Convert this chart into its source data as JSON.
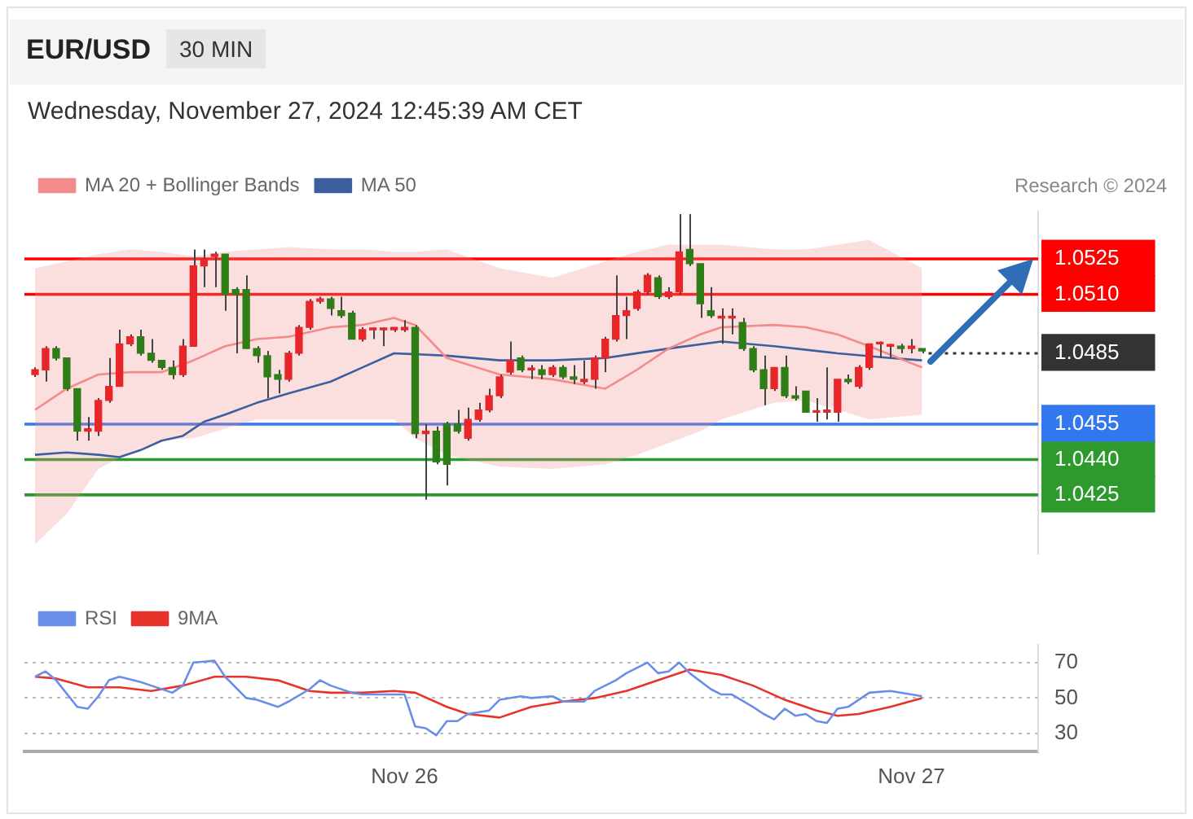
{
  "chart_data": [
    {
      "type": "candlestick",
      "title": "EUR/USD",
      "subtitle": "Wednesday, November 27, 2024 12:45:39 AM CET",
      "annotations": [
        "30 MIN",
        "Research © 2024"
      ],
      "legend": "top left",
      "grid": false,
      "tick_labels": "y",
      "xlim": [
        "2024-11-25T06:00",
        "2024-11-27T06:00"
      ],
      "ylim": [
        1.04,
        1.0545
      ],
      "yticks": [
        1.0425,
        {
          "value": 1.044,
          "label": "1.0440"
        },
        1.0455,
        1.0485,
        {
          "value": 1.051,
          "label": "1.0510"
        },
        1.0525
      ],
      "x": [
        "2024-11-25T06:30",
        "2024-11-25T07:00",
        "2024-11-25T07:30",
        "2024-11-25T08:00",
        "2024-11-25T08:30",
        "2024-11-25T09:00",
        "2024-11-25T09:30",
        "2024-11-25T10:00",
        "2024-11-25T10:30",
        "2024-11-25T11:00",
        "2024-11-25T11:30",
        "2024-11-25T12:00",
        "2024-11-25T12:30",
        "2024-11-25T13:00",
        "2024-11-25T13:30",
        "2024-11-25T14:00",
        "2024-11-25T14:30",
        "2024-11-25T15:00",
        "2024-11-25T15:30",
        "2024-11-25T16:00",
        "2024-11-25T16:30",
        "2024-11-25T17:00",
        "2024-11-25T17:30",
        "2024-11-25T18:00",
        "2024-11-25T18:30",
        "2024-11-25T19:00",
        "2024-11-25T19:30",
        "2024-11-25T20:00",
        "2024-11-25T20:30",
        "2024-11-25T21:00",
        "2024-11-25T21:30",
        "2024-11-25T22:00",
        "2024-11-25T22:30",
        "2024-11-25T23:00",
        "2024-11-25T23:30",
        "2024-11-26T00:00",
        "2024-11-26T00:30",
        "2024-11-26T01:00",
        "2024-11-26T01:30",
        "2024-11-26T02:00",
        "2024-11-26T02:30",
        "2024-11-26T03:00",
        "2024-11-26T03:30",
        "2024-11-26T04:00",
        "2024-11-26T04:30",
        "2024-11-26T05:00",
        "2024-11-26T05:30",
        "2024-11-26T06:00",
        "2024-11-26T06:30",
        "2024-11-26T07:00",
        "2024-11-26T07:30",
        "2024-11-26T08:00",
        "2024-11-26T08:30",
        "2024-11-26T09:00",
        "2024-11-26T09:30",
        "2024-11-26T10:00",
        "2024-11-26T10:30",
        "2024-11-26T11:00",
        "2024-11-26T11:30",
        "2024-11-26T12:00",
        "2024-11-26T12:30",
        "2024-11-26T13:00",
        "2024-11-26T13:30",
        "2024-11-26T14:00",
        "2024-11-26T14:30",
        "2024-11-26T15:00",
        "2024-11-26T15:30",
        "2024-11-26T16:00",
        "2024-11-26T16:30",
        "2024-11-26T17:00",
        "2024-11-26T17:30",
        "2024-11-26T18:00",
        "2024-11-26T18:30",
        "2024-11-26T19:00",
        "2024-11-26T19:30",
        "2024-11-26T20:00",
        "2024-11-26T20:30",
        "2024-11-26T21:00",
        "2024-11-26T21:30",
        "2024-11-26T22:00",
        "2024-11-26T22:30",
        "2024-11-26T23:00",
        "2024-11-26T23:30",
        "2024-11-27T00:00",
        "2024-11-27T00:30"
      ],
      "ohlc": [
        [
          1.0476,
          1.0479,
          1.0475,
          1.0478
        ],
        [
          1.0478,
          1.0488,
          1.0473,
          1.0487
        ],
        [
          1.0487,
          1.0488,
          1.0482,
          1.0483
        ],
        [
          1.0483,
          1.0483,
          1.0469,
          1.047
        ],
        [
          1.047,
          1.047,
          1.0448,
          1.0452
        ],
        [
          1.0452,
          1.0458,
          1.0448,
          1.0453
        ],
        [
          1.0452,
          1.0466,
          1.045,
          1.0465
        ],
        [
          1.0465,
          1.0483,
          1.0464,
          1.0471
        ],
        [
          1.0471,
          1.0495,
          1.0471,
          1.0489
        ],
        [
          1.0489,
          1.0493,
          1.0488,
          1.0492
        ],
        [
          1.0492,
          1.0495,
          1.0484,
          1.0485
        ],
        [
          1.0485,
          1.0491,
          1.0481,
          1.0482
        ],
        [
          1.0482,
          1.0482,
          1.0478,
          1.0479
        ],
        [
          1.0479,
          1.0482,
          1.0474,
          1.0476
        ],
        [
          1.0476,
          1.0491,
          1.0475,
          1.0488
        ],
        [
          1.0488,
          1.0529,
          1.0488,
          1.0522
        ],
        [
          1.0522,
          1.0529,
          1.0513,
          1.0525
        ],
        [
          1.0526,
          1.0528,
          1.0513,
          1.0527
        ],
        [
          1.0527,
          1.0527,
          1.0503,
          1.051
        ],
        [
          1.0512,
          1.0513,
          1.0485,
          1.051
        ],
        [
          1.0512,
          1.0518,
          1.0487,
          1.0487
        ],
        [
          1.0487,
          1.0488,
          1.0481,
          1.0484
        ],
        [
          1.0484,
          1.0486,
          1.0466,
          1.0475
        ],
        [
          1.0476,
          1.0478,
          1.0468,
          1.0474
        ],
        [
          1.0474,
          1.0486,
          1.0473,
          1.0485
        ],
        [
          1.0485,
          1.0497,
          1.0484,
          1.0496
        ],
        [
          1.0496,
          1.0508,
          1.0495,
          1.0507
        ],
        [
          1.0507,
          1.0509,
          1.0506,
          1.0508
        ],
        [
          1.0508,
          1.0509,
          1.0501,
          1.0504
        ],
        [
          1.0503,
          1.0509,
          1.05,
          1.0501
        ],
        [
          1.0502,
          1.0503,
          1.0491,
          1.0491
        ],
        [
          1.0491,
          1.0496,
          1.049,
          1.0495
        ],
        [
          1.0495,
          1.0496,
          1.0491,
          1.0495
        ],
        [
          1.0495,
          1.0496,
          1.0488,
          1.0495
        ],
        [
          1.0495,
          1.0496,
          1.0494,
          1.0496
        ],
        [
          1.0495,
          1.0499,
          1.0494,
          1.0496
        ],
        [
          1.0496,
          1.0497,
          1.0449,
          1.0451
        ],
        [
          1.0451,
          1.0455,
          1.0423,
          1.0452
        ],
        [
          1.0452,
          1.0454,
          1.0438,
          1.0439
        ],
        [
          1.0455,
          1.0456,
          1.0429,
          1.0438
        ],
        [
          1.0455,
          1.0461,
          1.0451,
          1.0452
        ],
        [
          1.0449,
          1.0462,
          1.0448,
          1.0457
        ],
        [
          1.0457,
          1.0464,
          1.0456,
          1.0461
        ],
        [
          1.0461,
          1.047,
          1.046,
          1.0467
        ],
        [
          1.0467,
          1.0476,
          1.0466,
          1.0475
        ],
        [
          1.0477,
          1.049,
          1.0476,
          1.0482
        ],
        [
          1.0483,
          1.0484,
          1.0477,
          1.0478
        ],
        [
          1.0478,
          1.048,
          1.0474,
          1.0478
        ],
        [
          1.0478,
          1.048,
          1.0474,
          1.0476
        ],
        [
          1.0476,
          1.048,
          1.0475,
          1.0479
        ],
        [
          1.0479,
          1.048,
          1.0474,
          1.0475
        ],
        [
          1.0475,
          1.048,
          1.0472,
          1.0474
        ],
        [
          1.0473,
          1.0482,
          1.0472,
          1.0474
        ],
        [
          1.0474,
          1.0484,
          1.047,
          1.0483
        ],
        [
          1.0483,
          1.0492,
          1.0477,
          1.0491
        ],
        [
          1.0491,
          1.0518,
          1.049,
          1.0501
        ],
        [
          1.0501,
          1.0509,
          1.0491,
          1.0503
        ],
        [
          1.0504,
          1.0512,
          1.0503,
          1.0511
        ],
        [
          1.0511,
          1.0519,
          1.051,
          1.0518
        ],
        [
          1.0517,
          1.0518,
          1.0508,
          1.0509
        ],
        [
          1.0509,
          1.0513,
          1.0508,
          1.0511
        ],
        [
          1.0511,
          1.0544,
          1.051,
          1.0528
        ],
        [
          1.0529,
          1.0544,
          1.0522,
          1.0523
        ],
        [
          1.0523,
          1.0523,
          1.05,
          1.0506
        ],
        [
          1.0503,
          1.0513,
          1.05,
          1.0501
        ],
        [
          1.05,
          1.0504,
          1.0489,
          1.05
        ],
        [
          1.05,
          1.0504,
          1.0493,
          1.05
        ],
        [
          1.0498,
          1.05,
          1.0486,
          1.0487
        ],
        [
          1.0487,
          1.0488,
          1.0477,
          1.0478
        ],
        [
          1.0478,
          1.0484,
          1.0463,
          1.047
        ],
        [
          1.047,
          1.0479,
          1.0469,
          1.0479
        ],
        [
          1.0479,
          1.0484,
          1.0466,
          1.0467
        ],
        [
          1.0467,
          1.0471,
          1.0465,
          1.0466
        ],
        [
          1.0469,
          1.0469,
          1.046,
          1.046
        ],
        [
          1.046,
          1.0466,
          1.0456,
          1.046
        ],
        [
          1.046,
          1.0479,
          1.0457,
          1.0461
        ],
        [
          1.046,
          1.0474,
          1.0456,
          1.0474
        ],
        [
          1.0474,
          1.0476,
          1.0472,
          1.0473
        ],
        [
          1.0471,
          1.048,
          1.047,
          1.0479
        ],
        [
          1.0479,
          1.0489,
          1.0478,
          1.0489
        ],
        [
          1.0489,
          1.049,
          1.0483,
          1.0489
        ],
        [
          1.0488,
          1.0489,
          1.0483,
          1.0488
        ],
        [
          1.0488,
          1.0489,
          1.0485,
          1.0487
        ],
        [
          1.0487,
          1.0491,
          1.0485,
          1.0488
        ],
        [
          1.0487,
          1.0487,
          1.0485,
          1.0486
        ]
      ],
      "series": [
        {
          "name": "MA 20 + Bollinger Bands",
          "type": "line",
          "color": "#f28b8b",
          "x": [
            "2024-11-25T06:30",
            "2024-11-25T08:00",
            "2024-11-25T09:30",
            "2024-11-25T11:00",
            "2024-11-25T12:30",
            "2024-11-25T14:00",
            "2024-11-25T15:30",
            "2024-11-25T17:00",
            "2024-11-25T18:30",
            "2024-11-25T20:30",
            "2024-11-25T22:00",
            "2024-11-25T23:30",
            "2024-11-26T00:30",
            "2024-11-26T02:00",
            "2024-11-26T04:30",
            "2024-11-26T07:00",
            "2024-11-26T09:30",
            "2024-11-26T11:00",
            "2024-11-26T12:30",
            "2024-11-26T14:00",
            "2024-11-26T15:00",
            "2024-11-26T17:30",
            "2024-11-26T19:00",
            "2024-11-26T20:30",
            "2024-11-26T22:00",
            "2024-11-27T00:30"
          ],
          "values": [
            1.0461,
            1.047,
            1.0476,
            1.0477,
            1.0477,
            1.0482,
            1.0488,
            1.0491,
            1.0492,
            1.0496,
            1.0497,
            1.05,
            1.0497,
            1.0483,
            1.0476,
            1.0474,
            1.047,
            1.0478,
            1.0487,
            1.0493,
            1.0496,
            1.0497,
            1.0496,
            1.0493,
            1.0488,
            1.0479
          ],
          "upper": [
            1.0521,
            1.0524,
            1.0527,
            1.0529,
            1.0528,
            1.0526,
            1.0528,
            1.0529,
            1.053,
            1.0529,
            1.0529,
            1.0528,
            1.0528,
            1.0529,
            1.0521,
            1.0517,
            1.0524,
            1.0528,
            1.0531,
            1.0531,
            1.0531,
            1.0529,
            1.0529,
            1.0531,
            1.0533,
            1.0521
          ],
          "lower": [
            1.0404,
            1.0417,
            1.0436,
            1.0443,
            1.0448,
            1.0449,
            1.0453,
            1.0457,
            1.0457,
            1.0457,
            1.0457,
            1.0457,
            1.0449,
            1.0442,
            1.0437,
            1.0436,
            1.0438,
            1.0442,
            1.0447,
            1.0452,
            1.0457,
            1.0464,
            1.0465,
            1.0461,
            1.0457,
            1.0459
          ]
        },
        {
          "name": "MA 50",
          "type": "line",
          "color": "#3d5f9e",
          "x": [
            "2024-11-25T06:30",
            "2024-11-25T08:00",
            "2024-11-25T09:30",
            "2024-11-25T10:30",
            "2024-11-25T11:30",
            "2024-11-25T12:30",
            "2024-11-25T13:30",
            "2024-11-25T14:30",
            "2024-11-25T15:30",
            "2024-11-25T17:00",
            "2024-11-25T18:30",
            "2024-11-25T20:30",
            "2024-11-25T22:00",
            "2024-11-25T23:30",
            "2024-11-26T02:00",
            "2024-11-26T04:30",
            "2024-11-26T07:00",
            "2024-11-26T09:30",
            "2024-11-26T12:30",
            "2024-11-26T15:00",
            "2024-11-26T17:30",
            "2024-11-26T20:30",
            "2024-11-26T23:00",
            "2024-11-27T00:30"
          ],
          "values": [
            1.0442,
            1.0443,
            1.0442,
            1.0441,
            1.0444,
            1.0448,
            1.045,
            1.0456,
            1.0459,
            1.0464,
            1.0468,
            1.0473,
            1.0479,
            1.0485,
            1.0484,
            1.0482,
            1.0482,
            1.0483,
            1.0487,
            1.049,
            1.0488,
            1.0485,
            1.0483,
            1.0482
          ]
        }
      ],
      "ref_lines": [
        {
          "axis": "y",
          "value": 1.0525,
          "color": "#ff0000"
        },
        {
          "axis": "y",
          "value": 1.051,
          "color": "#ff0000"
        },
        {
          "axis": "y",
          "value": 1.0485,
          "color": "#333333",
          "line_style": "dotted"
        },
        {
          "axis": "y",
          "value": 1.0455,
          "color": "#3377ee"
        },
        {
          "axis": "y",
          "value": 1.044,
          "color": "#2e9a2e"
        },
        {
          "axis": "y",
          "value": 1.0425,
          "color": "#2e9a2e"
        }
      ]
    },
    {
      "type": "line",
      "legend": "top left",
      "grid": "y",
      "xlim": [
        "2024-11-25T06:00",
        "2024-11-27T06:00"
      ],
      "xticks": [
        {
          "value": "2024-11-26",
          "label": "Nov 26"
        },
        {
          "value": "2024-11-27",
          "label": "Nov 27"
        }
      ],
      "ylim": [
        20,
        80
      ],
      "yticks": [
        30,
        50,
        70
      ],
      "series": [
        {
          "name": "RSI",
          "color": "#6a8ee8",
          "x": [
            "2024-11-25T06:30",
            "2024-11-25T07:00",
            "2024-11-25T07:30",
            "2024-11-25T08:30",
            "2024-11-25T09:00",
            "2024-11-25T09:30",
            "2024-11-25T10:00",
            "2024-11-25T10:30",
            "2024-11-25T11:30",
            "2024-11-25T12:00",
            "2024-11-25T13:00",
            "2024-11-25T13:30",
            "2024-11-25T14:00",
            "2024-11-25T15:00",
            "2024-11-25T15:30",
            "2024-11-25T16:30",
            "2024-11-25T17:00",
            "2024-11-25T18:00",
            "2024-11-25T18:30",
            "2024-11-25T19:30",
            "2024-11-25T20:00",
            "2024-11-25T20:30",
            "2024-11-25T21:30",
            "2024-11-25T22:00",
            "2024-11-25T23:00",
            "2024-11-26T00:00",
            "2024-11-26T00:30",
            "2024-11-26T01:00",
            "2024-11-26T01:30",
            "2024-11-26T02:00",
            "2024-11-26T02:30",
            "2024-11-26T03:00",
            "2024-11-26T04:00",
            "2024-11-26T04:30",
            "2024-11-26T05:30",
            "2024-11-26T06:00",
            "2024-11-26T07:00",
            "2024-11-26T07:30",
            "2024-11-26T08:30",
            "2024-11-26T09:00",
            "2024-11-26T10:00",
            "2024-11-26T10:30",
            "2024-11-26T11:00",
            "2024-11-26T11:30",
            "2024-11-26T12:00",
            "2024-11-26T12:30",
            "2024-11-26T13:00",
            "2024-11-26T13:30",
            "2024-11-26T14:30",
            "2024-11-26T15:00",
            "2024-11-26T15:30",
            "2024-11-26T16:30",
            "2024-11-26T17:00",
            "2024-11-26T17:30",
            "2024-11-26T18:00",
            "2024-11-26T18:30",
            "2024-11-26T19:00",
            "2024-11-26T19:30",
            "2024-11-26T20:00",
            "2024-11-26T20:30",
            "2024-11-26T21:00",
            "2024-11-26T22:00",
            "2024-11-26T23:00",
            "2024-11-27T00:00",
            "2024-11-27T00:30"
          ],
          "values": [
            62,
            65,
            60,
            45,
            44,
            51,
            60,
            62,
            59,
            57,
            53,
            57,
            70,
            71,
            62,
            50,
            49,
            45,
            48,
            55,
            60,
            57,
            53,
            52,
            52,
            52,
            34,
            33,
            29,
            37,
            37,
            41,
            43,
            49,
            51,
            50,
            51,
            48,
            48,
            54,
            60,
            64,
            67,
            70,
            64,
            65,
            70,
            64,
            55,
            52,
            52,
            45,
            41,
            38,
            44,
            40,
            41,
            37,
            36,
            44,
            45,
            53,
            54,
            52,
            51
          ]
        },
        {
          "name": "9MA",
          "color": "#e8332a",
          "x": [
            "2024-11-25T06:30",
            "2024-11-25T07:30",
            "2024-11-25T09:00",
            "2024-11-25T10:30",
            "2024-11-25T12:00",
            "2024-11-25T13:30",
            "2024-11-25T15:00",
            "2024-11-25T16:30",
            "2024-11-25T18:00",
            "2024-11-25T19:30",
            "2024-11-25T20:30",
            "2024-11-25T22:00",
            "2024-11-25T23:30",
            "2024-11-26T00:30",
            "2024-11-26T02:00",
            "2024-11-26T03:00",
            "2024-11-26T04:30",
            "2024-11-26T06:00",
            "2024-11-26T07:30",
            "2024-11-26T09:00",
            "2024-11-26T10:30",
            "2024-11-26T12:00",
            "2024-11-26T13:30",
            "2024-11-26T15:00",
            "2024-11-26T16:30",
            "2024-11-26T18:00",
            "2024-11-26T19:30",
            "2024-11-26T20:30",
            "2024-11-26T21:30",
            "2024-11-26T23:00",
            "2024-11-27T00:30"
          ],
          "values": [
            62,
            61,
            56,
            56,
            54,
            57,
            62,
            62,
            60,
            54,
            53,
            53,
            54,
            53,
            45,
            41,
            39,
            45,
            48,
            50,
            54,
            60,
            66,
            63,
            57,
            49,
            43,
            40,
            41,
            45,
            50
          ]
        }
      ]
    }
  ]
}
